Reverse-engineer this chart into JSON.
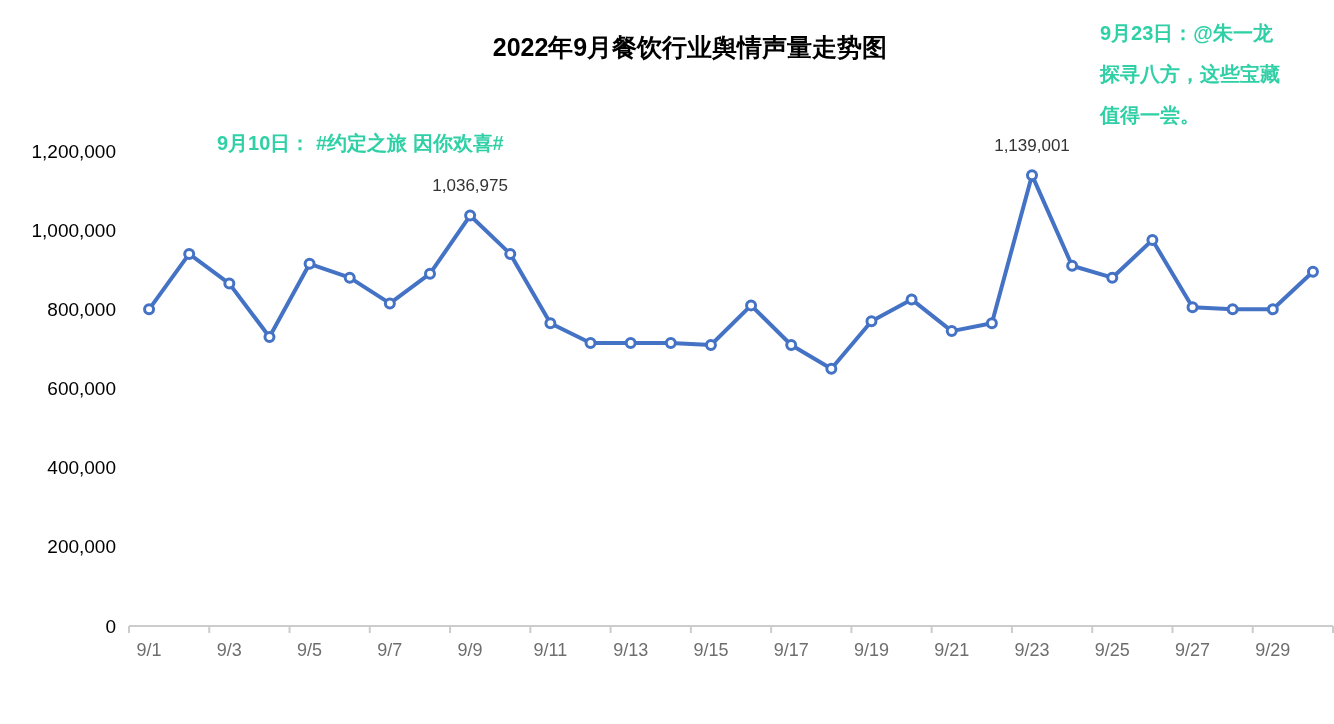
{
  "chart_data": {
    "type": "line",
    "title": "2022年9月餐饮行业舆情声量走势图",
    "categories": [
      "9/1",
      null,
      "9/3",
      null,
      "9/5",
      null,
      "9/7",
      null,
      "9/9",
      null,
      "9/11",
      null,
      "9/13",
      null,
      "9/15",
      null,
      "9/17",
      null,
      "9/19",
      null,
      "9/21",
      null,
      "9/23",
      null,
      "9/25",
      null,
      "9/27",
      null,
      "9/29",
      null
    ],
    "series": [
      {
        "color": "#4472c4",
        "values": [
          800000,
          940000,
          865000,
          730000,
          915000,
          880000,
          815000,
          890000,
          1036975,
          940000,
          765000,
          715000,
          715000,
          715000,
          710000,
          810000,
          710000,
          650000,
          770000,
          825000,
          745000,
          765000,
          1139001,
          910000,
          880000,
          975000,
          805000,
          800000,
          800000,
          895000
        ],
        "value_labels": [
          null,
          null,
          null,
          null,
          null,
          null,
          null,
          null,
          "1,036,975",
          null,
          null,
          null,
          null,
          null,
          null,
          null,
          null,
          null,
          null,
          null,
          null,
          null,
          "1,139,001",
          null,
          null,
          null,
          null,
          null,
          null,
          null
        ]
      }
    ],
    "ylim": [
      0,
      1200000
    ],
    "yticks": [
      0,
      {
        "value": 200000,
        "label": "200,000"
      },
      {
        "value": 400000,
        "label": "400,000"
      },
      {
        "value": 600000,
        "label": "600,000"
      },
      {
        "value": 800000,
        "label": "800,000"
      },
      {
        "value": 1000000,
        "label": "1,000,000"
      },
      {
        "value": 1200000,
        "label": "1,200,000"
      }
    ],
    "marker": "circle",
    "line_style": "solid",
    "annotations": [
      "9月10日： #约定之旅 因你欢喜#",
      "9月23日：@朱一龙探寻八方，这些宝藏值得一尝。"
    ]
  }
}
